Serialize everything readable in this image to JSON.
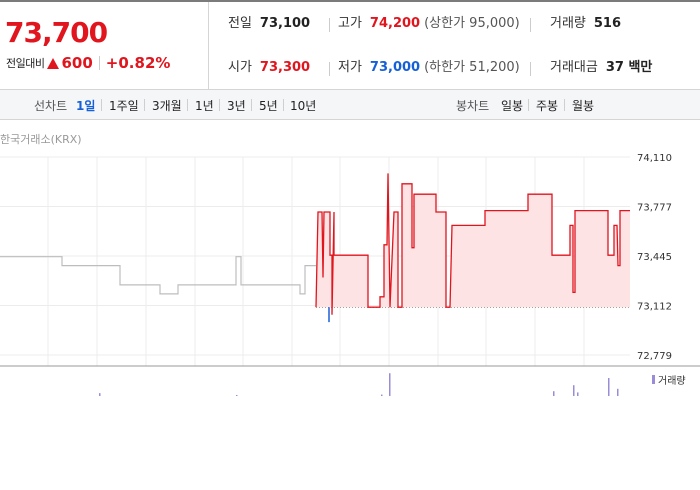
{
  "quote": {
    "current_price": "73,700",
    "change_label": "전일대비",
    "change_amount": "600",
    "change_rate": "+0.82%",
    "prev_close": {
      "label": "전일",
      "value": "73,100"
    },
    "open": {
      "label": "시가",
      "value": "73,300"
    },
    "high": {
      "label": "고가",
      "value": "74,200",
      "sub": "(상한가 95,000)"
    },
    "low": {
      "label": "저가",
      "value": "73,000",
      "sub": "(하한가 51,200)"
    },
    "volume": {
      "label": "거래량",
      "value": "516"
    },
    "trade_value": {
      "label": "거래대금",
      "value": "37 백만"
    }
  },
  "period_bar": {
    "line_label": "선차트",
    "line_periods": [
      "1일",
      "1주일",
      "3개월",
      "1년",
      "3년",
      "5년",
      "10년"
    ],
    "active_period": "1일",
    "candle_label": "봉차트",
    "candle_periods": [
      "일봉",
      "주봉",
      "월봉"
    ]
  },
  "source": "한국거래소(KRX)",
  "volume_legend": "거래량",
  "colors": {
    "up": "#e0151e",
    "down": "#1560d8",
    "accent": "#1560d8",
    "volume": "#9b8cd8"
  },
  "chart_data": {
    "type": "line",
    "ylim": [
      72779,
      74110
    ],
    "y_ticks": [
      "74,110",
      "73,777",
      "73,445",
      "73,112",
      "72,779"
    ],
    "reference_price": 73100,
    "previous_session": [
      [
        0,
        73440
      ],
      [
        62,
        73440
      ],
      [
        62,
        73380
      ],
      [
        120,
        73380
      ],
      [
        120,
        73250
      ],
      [
        160,
        73250
      ],
      [
        160,
        73190
      ],
      [
        178,
        73190
      ],
      [
        178,
        73250
      ],
      [
        236,
        73250
      ],
      [
        236,
        73440
      ],
      [
        241,
        73440
      ],
      [
        241,
        73250
      ],
      [
        300,
        73250
      ],
      [
        300,
        73190
      ],
      [
        305,
        73190
      ],
      [
        305,
        73380
      ],
      [
        316,
        73380
      ]
    ],
    "current_session": [
      [
        316,
        73100
      ],
      [
        318,
        73740
      ],
      [
        322,
        73740
      ],
      [
        323,
        73300
      ],
      [
        324,
        73740
      ],
      [
        330,
        73740
      ],
      [
        330,
        73450
      ],
      [
        332,
        73450
      ],
      [
        332,
        73050
      ],
      [
        334,
        73740
      ],
      [
        334,
        73450
      ],
      [
        368,
        73450
      ],
      [
        368,
        73100
      ],
      [
        380,
        73100
      ],
      [
        380,
        73170
      ],
      [
        384,
        73170
      ],
      [
        384,
        73520
      ],
      [
        387,
        73520
      ],
      [
        388,
        74000
      ],
      [
        390,
        73100
      ],
      [
        394,
        73740
      ],
      [
        398,
        73740
      ],
      [
        398,
        73100
      ],
      [
        402,
        73100
      ],
      [
        402,
        73930
      ],
      [
        412,
        73930
      ],
      [
        412,
        73500
      ],
      [
        414,
        73500
      ],
      [
        414,
        73860
      ],
      [
        436,
        73860
      ],
      [
        436,
        73740
      ],
      [
        446,
        73740
      ],
      [
        446,
        73100
      ],
      [
        450,
        73100
      ],
      [
        452,
        73650
      ],
      [
        485,
        73650
      ],
      [
        485,
        73750
      ],
      [
        528,
        73750
      ],
      [
        528,
        73860
      ],
      [
        552,
        73860
      ],
      [
        552,
        73450
      ],
      [
        570,
        73450
      ],
      [
        570,
        73650
      ],
      [
        573,
        73650
      ],
      [
        573,
        73200
      ],
      [
        575,
        73200
      ],
      [
        575,
        73750
      ],
      [
        608,
        73750
      ],
      [
        608,
        73450
      ],
      [
        614,
        73450
      ],
      [
        614,
        73650
      ],
      [
        617,
        73650
      ],
      [
        618,
        73380
      ],
      [
        620,
        73380
      ],
      [
        620,
        73750
      ],
      [
        630,
        73750
      ]
    ],
    "volume_bars": [
      {
        "x": 99,
        "v": 0.12
      },
      {
        "x": 236,
        "v": 0.02
      },
      {
        "x": 381,
        "v": 0.06
      },
      {
        "x": 389,
        "v": 0.95
      },
      {
        "x": 553,
        "v": 0.2
      },
      {
        "x": 573,
        "v": 0.45
      },
      {
        "x": 577,
        "v": 0.15
      },
      {
        "x": 608,
        "v": 0.75
      },
      {
        "x": 617,
        "v": 0.3
      }
    ]
  }
}
